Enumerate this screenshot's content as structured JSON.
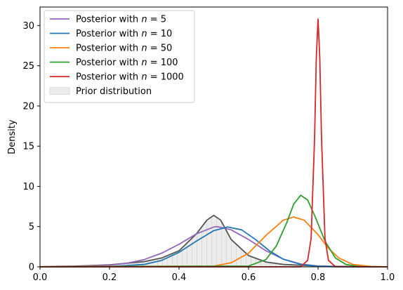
{
  "chart_data": {
    "type": "line",
    "title": "",
    "xlabel": "",
    "ylabel": "Density",
    "xlim": [
      0.0,
      1.0
    ],
    "ylim": [
      0,
      32.3
    ],
    "grid": false,
    "legend_placement": "top-left",
    "x_ticks": [
      "0.0",
      "0.2",
      "0.4",
      "0.6",
      "0.8",
      "1.0"
    ],
    "y_ticks": [
      "0",
      "5",
      "10",
      "15",
      "20",
      "25",
      "30"
    ],
    "x_tick_values": [
      0.0,
      0.2,
      0.4,
      0.6,
      0.8,
      1.0
    ],
    "y_tick_values": [
      0,
      5,
      10,
      15,
      20,
      25,
      30
    ],
    "series": [
      {
        "name": "Posterior with n = 5",
        "label_prefix": "Posterior with ",
        "label_var": "n",
        "label_suffix": " = 5",
        "color": "#9467bd",
        "x": [
          0.0,
          0.1,
          0.2,
          0.25,
          0.3,
          0.35,
          0.4,
          0.45,
          0.5,
          0.51,
          0.55,
          0.6,
          0.65,
          0.7,
          0.75,
          0.8,
          0.85,
          0.9,
          1.0
        ],
        "y": [
          0.0,
          0.02,
          0.2,
          0.45,
          0.9,
          1.7,
          2.8,
          4.1,
          4.95,
          5.0,
          4.6,
          3.4,
          2.0,
          0.95,
          0.35,
          0.1,
          0.03,
          0.0,
          0.0
        ]
      },
      {
        "name": "Posterior with n = 10",
        "label_prefix": "Posterior with ",
        "label_var": "n",
        "label_suffix": " = 10",
        "color": "#1f77b4",
        "x": [
          0.0,
          0.2,
          0.3,
          0.35,
          0.4,
          0.45,
          0.5,
          0.54,
          0.58,
          0.62,
          0.66,
          0.7,
          0.75,
          0.8,
          0.85,
          1.0
        ],
        "y": [
          0.0,
          0.03,
          0.3,
          0.8,
          1.8,
          3.2,
          4.5,
          4.95,
          4.6,
          3.4,
          2.0,
          0.95,
          0.3,
          0.07,
          0.01,
          0.0
        ]
      },
      {
        "name": "Posterior with n = 50",
        "label_prefix": "Posterior with ",
        "label_var": "n",
        "label_suffix": " = 50",
        "color": "#ff7f0e",
        "x": [
          0.0,
          0.5,
          0.55,
          0.6,
          0.65,
          0.7,
          0.73,
          0.76,
          0.8,
          0.83,
          0.86,
          0.9,
          0.95,
          1.0
        ],
        "y": [
          0.0,
          0.1,
          0.5,
          1.7,
          3.9,
          5.8,
          6.2,
          5.8,
          4.0,
          2.3,
          1.1,
          0.3,
          0.05,
          0.0
        ]
      },
      {
        "name": "Posterior with n = 100",
        "label_prefix": "Posterior with ",
        "label_var": "n",
        "label_suffix": " = 100",
        "color": "#2ca02c",
        "x": [
          0.0,
          0.6,
          0.65,
          0.68,
          0.71,
          0.73,
          0.75,
          0.77,
          0.79,
          0.82,
          0.85,
          0.88,
          0.92,
          1.0
        ],
        "y": [
          0.0,
          0.1,
          0.9,
          2.6,
          5.5,
          7.8,
          8.9,
          8.3,
          6.4,
          3.2,
          1.1,
          0.3,
          0.03,
          0.0
        ]
      },
      {
        "name": "Posterior with n = 1000",
        "label_prefix": "Posterior with ",
        "label_var": "n",
        "label_suffix": " = 1000",
        "color": "#d62728",
        "x": [
          0.0,
          0.75,
          0.77,
          0.78,
          0.79,
          0.795,
          0.8,
          0.805,
          0.81,
          0.82,
          0.83,
          0.85,
          1.0
        ],
        "y": [
          0.0,
          0.0,
          0.8,
          3.5,
          16.0,
          26.0,
          30.8,
          26.0,
          16.0,
          3.5,
          0.8,
          0.02,
          0.0
        ]
      }
    ],
    "prior": {
      "name": "Prior distribution",
      "label": "Prior distribution",
      "fill": "#ececec",
      "hatch": "#c8c8c8",
      "edge": "#555555",
      "x": [
        0.0,
        0.1,
        0.2,
        0.3,
        0.35,
        0.4,
        0.45,
        0.48,
        0.5,
        0.52,
        0.55,
        0.6,
        0.65,
        0.7,
        0.8,
        0.9,
        1.0
      ],
      "y": [
        0.02,
        0.08,
        0.25,
        0.65,
        1.1,
        2.0,
        4.1,
        5.8,
        6.4,
        5.8,
        3.4,
        1.4,
        0.6,
        0.3,
        0.1,
        0.03,
        0.0
      ]
    }
  }
}
